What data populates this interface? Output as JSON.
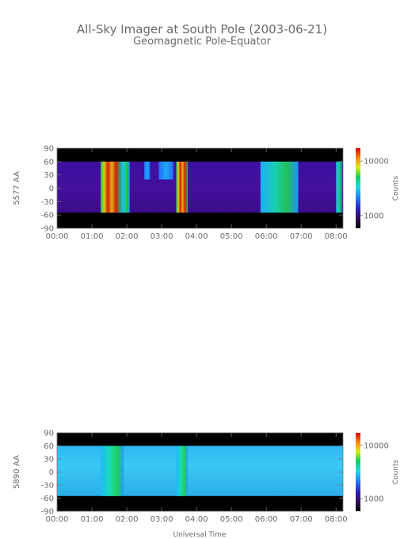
{
  "title": "All-Sky Imager at South Pole (2003-06-21)",
  "subtitle": "Geomagnetic Pole-Equator",
  "xlabel": "Universal Time",
  "colorbar_label": "Counts",
  "chart_data": [
    {
      "type": "heatmap",
      "ylabel": "5577 AA",
      "x_ticks": [
        "00:00",
        "01:00",
        "02:00",
        "03:00",
        "04:00",
        "05:00",
        "06:00",
        "07:00",
        "08:00"
      ],
      "y_ticks": [
        90,
        60,
        30,
        0,
        -30,
        -60,
        -90
      ],
      "xlim_hours": [
        0,
        8.2
      ],
      "ylim": [
        -90,
        90
      ],
      "data_band": [
        -55,
        60
      ],
      "colorbar_ticks": [
        "10000",
        "1000"
      ],
      "bright_events": [
        {
          "start": "01:15",
          "end": "01:50",
          "intensity": "high"
        },
        {
          "start": "01:50",
          "end": "02:05",
          "intensity": "medium"
        },
        {
          "start": "02:30",
          "end": "02:40",
          "intensity": "low"
        },
        {
          "start": "02:55",
          "end": "03:20",
          "intensity": "low"
        },
        {
          "start": "03:25",
          "end": "03:45",
          "intensity": "high"
        },
        {
          "start": "05:50",
          "end": "06:55",
          "intensity": "medium"
        },
        {
          "start": "08:00",
          "end": "08:10",
          "intensity": "medium"
        }
      ]
    },
    {
      "type": "heatmap",
      "ylabel": "5890 AA",
      "x_ticks": [
        "00:00",
        "01:00",
        "02:00",
        "03:00",
        "04:00",
        "05:00",
        "06:00",
        "07:00",
        "08:00"
      ],
      "y_ticks": [
        90,
        60,
        30,
        0,
        -30,
        -60,
        -90
      ],
      "xlim_hours": [
        0,
        8.2
      ],
      "ylim": [
        -90,
        90
      ],
      "data_band": [
        -55,
        60
      ],
      "colorbar_ticks": [
        "10000",
        "1000"
      ],
      "bright_events": [
        {
          "start": "01:15",
          "end": "01:55",
          "intensity": "medium"
        },
        {
          "start": "03:25",
          "end": "03:45",
          "intensity": "medium"
        }
      ]
    }
  ]
}
